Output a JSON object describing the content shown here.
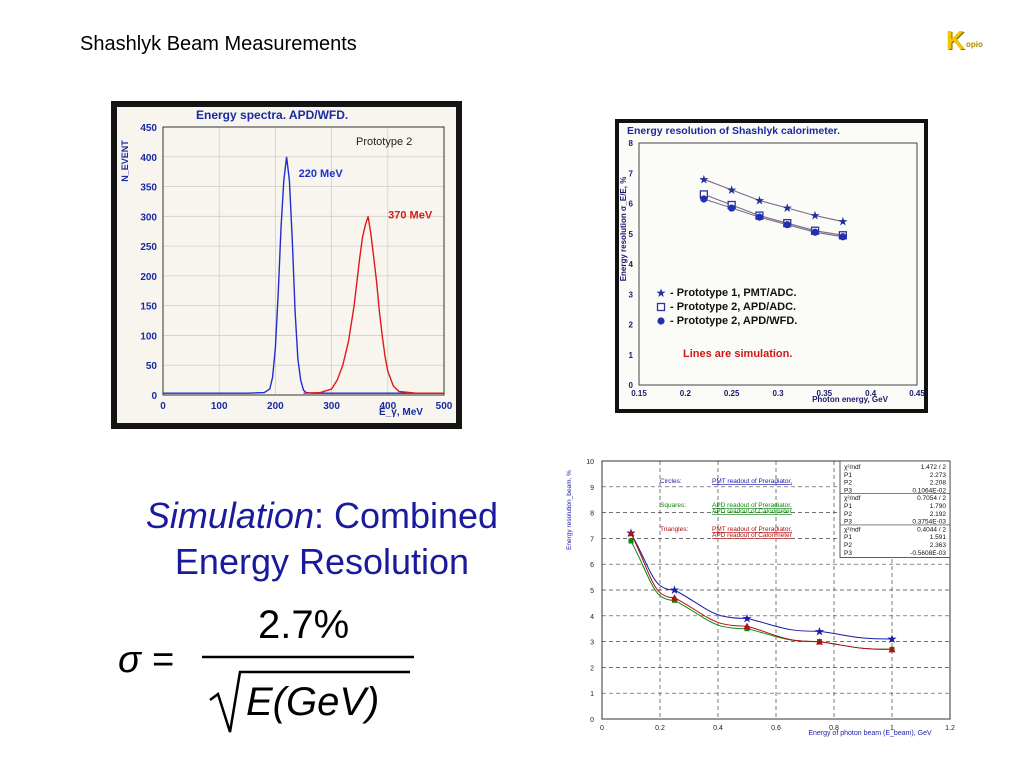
{
  "slide": {
    "title": "Shashlyk Beam Measurements",
    "logo_text": "K",
    "logo_small": "opio",
    "sim_label_italic": "Simulation",
    "sim_label_rest": ": Combined",
    "sim_label_line2": "Energy Resolution",
    "formula": {
      "lhs": "σ =",
      "numerator": "2.7%",
      "denominator": "E(GeV)"
    }
  },
  "chart_data": [
    {
      "type": "line",
      "title": "Energy spectra. APD/WFD.",
      "subtitle": "Prototype 2",
      "xlabel": "E_γ, MeV",
      "ylabel": "N_EVENT",
      "xlim": [
        0,
        500
      ],
      "ylim": [
        0,
        450
      ],
      "xticks": [
        "0",
        "100",
        "200",
        "300",
        "400",
        "500"
      ],
      "yticks": [
        "0",
        "50",
        "100",
        "150",
        "200",
        "250",
        "300",
        "350",
        "400",
        "450"
      ],
      "grid": true,
      "colors": {
        "220 MeV": "#1f2fd0",
        "370 MeV": "#e01818"
      },
      "series": [
        {
          "name": "220 MeV",
          "x": [
            0,
            150,
            180,
            190,
            195,
            200,
            205,
            210,
            215,
            220,
            225,
            230,
            235,
            240,
            245,
            250,
            255,
            265,
            300,
            500
          ],
          "values": [
            3,
            3,
            4,
            10,
            30,
            80,
            170,
            280,
            360,
            400,
            360,
            260,
            140,
            60,
            25,
            8,
            4,
            3,
            3,
            3
          ]
        },
        {
          "name": "370 MeV",
          "x": [
            250,
            280,
            300,
            310,
            320,
            330,
            340,
            345,
            350,
            355,
            360,
            365,
            370,
            375,
            380,
            385,
            390,
            395,
            400,
            410,
            420,
            450,
            500
          ],
          "values": [
            3,
            4,
            10,
            25,
            50,
            90,
            150,
            190,
            230,
            265,
            285,
            300,
            270,
            230,
            190,
            140,
            100,
            65,
            40,
            15,
            6,
            3,
            3
          ]
        }
      ]
    },
    {
      "type": "scatter",
      "title": "Energy resolution of Shashlyk calorimeter.",
      "xlabel": "Photon energy, GeV",
      "ylabel": "Energy resolution σ_E/E, %",
      "xlim": [
        0.15,
        0.45
      ],
      "ylim": [
        0,
        8
      ],
      "xticks": [
        "0.15",
        "0.2",
        "0.25",
        "0.3",
        "0.35",
        "0.4",
        "0.45"
      ],
      "yticks": [
        "0",
        "1",
        "2",
        "3",
        "4",
        "5",
        "6",
        "7",
        "8"
      ],
      "grid": false,
      "legend_placement": "lower-left",
      "annotation": "Lines are simulation.",
      "series": [
        {
          "name": "- Prototype 1, PMT/ADC.",
          "marker": "star",
          "x": [
            0.22,
            0.25,
            0.28,
            0.31,
            0.34,
            0.37
          ],
          "values": [
            6.8,
            6.45,
            6.1,
            5.85,
            5.6,
            5.4
          ]
        },
        {
          "name": "- Prototype 2, APD/ADC.",
          "marker": "open-square",
          "x": [
            0.22,
            0.25,
            0.28,
            0.31,
            0.34,
            0.37
          ],
          "values": [
            6.3,
            5.95,
            5.6,
            5.35,
            5.1,
            4.95
          ]
        },
        {
          "name": "- Prototype 2, APD/WFD.",
          "marker": "circle-star",
          "x": [
            0.22,
            0.25,
            0.28,
            0.31,
            0.34,
            0.37
          ],
          "values": [
            6.15,
            5.85,
            5.55,
            5.3,
            5.05,
            4.9
          ]
        }
      ]
    },
    {
      "type": "line",
      "xlabel": "Energy of photon beam (E_beam), GeV",
      "ylabel": "Energy resolution_beam, %",
      "xlim": [
        0,
        1.2
      ],
      "ylim": [
        0,
        10
      ],
      "xticks": [
        "0",
        "0.2",
        "0.4",
        "0.6",
        "0.8",
        "1",
        "1.2"
      ],
      "yticks": [
        "0",
        "1",
        "2",
        "3",
        "4",
        "5",
        "6",
        "7",
        "8",
        "9",
        "10"
      ],
      "grid": true,
      "legend_placement": "top-left",
      "legend": [
        {
          "label": "Circles:",
          "text1": "PMT readout of Preradiator,",
          "text2": "",
          "color": "#1a1aa8"
        },
        {
          "label": "Squares:",
          "text1": "APD readout of Preradiator,",
          "text2": "APD readout of Calorimeter",
          "color": "#0a8a0a"
        },
        {
          "label": "Triangles:",
          "text1": "PMT readout of Preradiator,",
          "text2": "APD readout of Calorimeter",
          "color": "#b01010"
        }
      ],
      "fit_box": [
        [
          "χ²/ndf",
          "1.472  /  2"
        ],
        [
          "P1",
          "2.273"
        ],
        [
          "P2",
          "2.208"
        ],
        [
          "P3",
          "0.1064E-02"
        ],
        [
          "χ²/ndf",
          "0.7054  /  2"
        ],
        [
          "P1",
          "1.790"
        ],
        [
          "P2",
          "2.192"
        ],
        [
          "P3",
          "0.3754E-03"
        ],
        [
          "χ²/ndf",
          "0.4044  /  2"
        ],
        [
          "P1",
          "1.591"
        ],
        [
          "P2",
          "2.363"
        ],
        [
          "P3",
          "-0.5608E-03"
        ]
      ],
      "series": [
        {
          "name": "Circles",
          "marker": "star",
          "color": "#1a1aa8",
          "x": [
            0.1,
            0.25,
            0.5,
            0.75,
            1.0
          ],
          "values": [
            7.2,
            5.0,
            3.9,
            3.4,
            3.1
          ]
        },
        {
          "name": "Squares",
          "marker": "square",
          "color": "#0a8a0a",
          "x": [
            0.1,
            0.25,
            0.5,
            0.75,
            1.0
          ],
          "values": [
            6.9,
            4.6,
            3.5,
            3.0,
            2.7
          ]
        },
        {
          "name": "Triangles",
          "marker": "triangle",
          "color": "#b01010",
          "x": [
            0.1,
            0.25,
            0.5,
            0.75,
            1.0
          ],
          "values": [
            7.2,
            4.7,
            3.6,
            3.0,
            2.7
          ]
        }
      ]
    }
  ]
}
